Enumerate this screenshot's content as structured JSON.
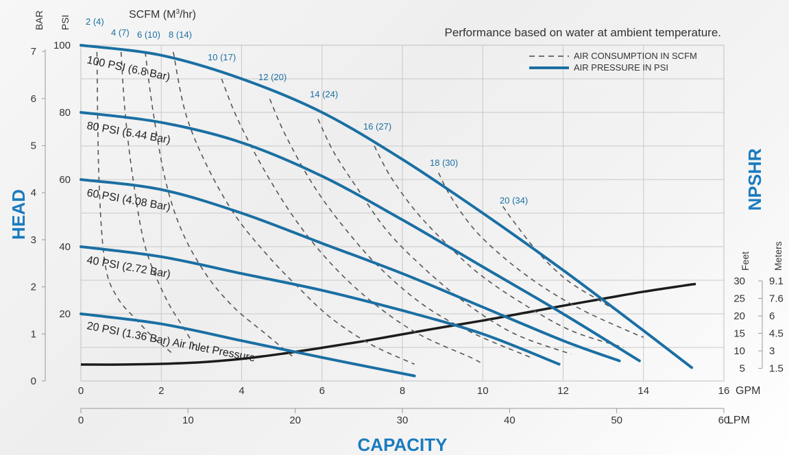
{
  "chart_data": {
    "type": "line",
    "note": "Performance based on water at ambient temperature.",
    "xlabel": "CAPACITY",
    "ylabel": "HEAD",
    "right_label": "NPSHR",
    "x_units": {
      "gpm": "GPM",
      "lpm": "LPM"
    },
    "y_units": {
      "bar": "BAR",
      "psi": "PSI"
    },
    "scfm_header": {
      "prefix": "SCFM (M",
      "sup": "3",
      "suffix": "/hr)"
    },
    "npshr_units": {
      "feet": "Feet",
      "meters": "Meters"
    },
    "xlim": [
      0,
      16
    ],
    "ylim": [
      0,
      100
    ],
    "x_ticks_gpm": [
      0,
      2,
      4,
      6,
      8,
      10,
      12,
      14,
      16
    ],
    "x_ticks_lpm": [
      0,
      10,
      20,
      30,
      40,
      50,
      60
    ],
    "y_ticks_psi": [
      20,
      40,
      60,
      80,
      100
    ],
    "y_ticks_bar": [
      0,
      1,
      2,
      3,
      4,
      5,
      6,
      7
    ],
    "npshr_ticks_feet": [
      30,
      25,
      20,
      15,
      10,
      5
    ],
    "npshr_ticks_meters": [
      "9.1",
      "7.6",
      "6",
      "4.5",
      "3",
      "1.5"
    ],
    "grid": true,
    "legend": [
      {
        "label": "AIR CONSUMPTION IN SCFM",
        "style": "dashed"
      },
      {
        "label": "AIR PRESSURE IN PSI",
        "style": "solid"
      }
    ],
    "pressure_series": [
      {
        "name": "100 PSI (6.8 Bar)",
        "points": [
          [
            0,
            100
          ],
          [
            2,
            97
          ],
          [
            4,
            90
          ],
          [
            6,
            80
          ],
          [
            8,
            66
          ],
          [
            10,
            50
          ],
          [
            12,
            33
          ],
          [
            14,
            15
          ],
          [
            15.2,
            4
          ]
        ]
      },
      {
        "name": "80 PSI (5.44 Bar)",
        "points": [
          [
            0,
            80
          ],
          [
            2,
            77
          ],
          [
            4,
            71
          ],
          [
            6,
            61
          ],
          [
            8,
            48
          ],
          [
            10,
            34
          ],
          [
            12,
            20
          ],
          [
            13.9,
            6
          ]
        ]
      },
      {
        "name": "60 PSI (4.08 Bar)",
        "points": [
          [
            0,
            60
          ],
          [
            2,
            57
          ],
          [
            4,
            50
          ],
          [
            6,
            41
          ],
          [
            8,
            32
          ],
          [
            10,
            22
          ],
          [
            12,
            12
          ],
          [
            13.4,
            6
          ]
        ]
      },
      {
        "name": "40 PSI (2.72 Bar)",
        "points": [
          [
            0,
            40
          ],
          [
            2,
            37
          ],
          [
            4,
            32
          ],
          [
            6,
            27
          ],
          [
            8,
            21
          ],
          [
            10,
            14
          ],
          [
            11.9,
            5
          ]
        ]
      },
      {
        "name": "20 PSI (1.36 Bar) Air Inlet Pressure",
        "points": [
          [
            0,
            20
          ],
          [
            2,
            17
          ],
          [
            4,
            12
          ],
          [
            6,
            7
          ],
          [
            8.3,
            1.5
          ]
        ]
      }
    ],
    "scfm_series": [
      {
        "name": "2 (4)",
        "points": [
          [
            0.4,
            98
          ],
          [
            0.45,
            60
          ],
          [
            0.6,
            35
          ],
          [
            0.9,
            25
          ],
          [
            1.4,
            18
          ],
          [
            1.8,
            13
          ],
          [
            2.3,
            8
          ]
        ]
      },
      {
        "name": "4 (7)",
        "points": [
          [
            1.0,
            98
          ],
          [
            1.1,
            80
          ],
          [
            1.3,
            60
          ],
          [
            1.6,
            40
          ],
          [
            2.1,
            25
          ],
          [
            2.6,
            15
          ],
          [
            2.9,
            9
          ]
        ]
      },
      {
        "name": "6 (10)",
        "points": [
          [
            1.6,
            98
          ],
          [
            1.8,
            80
          ],
          [
            2.1,
            60
          ],
          [
            2.5,
            45
          ],
          [
            3.1,
            32
          ],
          [
            3.8,
            22
          ],
          [
            4.6,
            14
          ],
          [
            5.3,
            7
          ]
        ]
      },
      {
        "name": "8 (14)",
        "points": [
          [
            2.3,
            98
          ],
          [
            2.6,
            80
          ],
          [
            3.1,
            65
          ],
          [
            3.8,
            50
          ],
          [
            4.6,
            38
          ],
          [
            5.4,
            28
          ],
          [
            6.2,
            19
          ],
          [
            7.2,
            11
          ],
          [
            8.3,
            5
          ]
        ]
      },
      {
        "name": "10 (17)",
        "points": [
          [
            3.5,
            90
          ],
          [
            3.9,
            78
          ],
          [
            4.6,
            62
          ],
          [
            5.4,
            47
          ],
          [
            6.3,
            34
          ],
          [
            7.3,
            23
          ],
          [
            8.4,
            14
          ],
          [
            9.7,
            7
          ],
          [
            10.0,
            5
          ]
        ]
      },
      {
        "name": "12 (20)",
        "points": [
          [
            4.7,
            84
          ],
          [
            5.1,
            73
          ],
          [
            5.8,
            58
          ],
          [
            6.6,
            45
          ],
          [
            7.5,
            33
          ],
          [
            8.6,
            22
          ],
          [
            9.8,
            14
          ],
          [
            11.2,
            7
          ]
        ]
      },
      {
        "name": "14 (24)",
        "points": [
          [
            5.9,
            78
          ],
          [
            6.3,
            68
          ],
          [
            6.9,
            57
          ],
          [
            7.6,
            45
          ],
          [
            8.5,
            34
          ],
          [
            9.6,
            23
          ],
          [
            10.8,
            14
          ],
          [
            12.2,
            8
          ]
        ]
      },
      {
        "name": "16 (27)",
        "points": [
          [
            7.3,
            70
          ],
          [
            7.7,
            61
          ],
          [
            8.3,
            51
          ],
          [
            9.0,
            42
          ],
          [
            9.9,
            32
          ],
          [
            11.0,
            23
          ],
          [
            12.2,
            15
          ],
          [
            13.5,
            10
          ]
        ]
      },
      {
        "name": "18 (30)",
        "points": [
          [
            8.9,
            62
          ],
          [
            9.2,
            55
          ],
          [
            9.8,
            45
          ],
          [
            10.6,
            36
          ],
          [
            11.5,
            28
          ],
          [
            12.5,
            21
          ],
          [
            13.6,
            15
          ],
          [
            14.0,
            13
          ]
        ]
      },
      {
        "name": "20 (34)",
        "points": [
          [
            10.5,
            52
          ],
          [
            10.8,
            47
          ],
          [
            11.4,
            38
          ],
          [
            12.1,
            30
          ],
          [
            12.9,
            24
          ],
          [
            13.6,
            19
          ]
        ]
      }
    ],
    "npshr_series": {
      "points": [
        [
          0,
          4.9
        ],
        [
          1,
          4.9
        ],
        [
          2,
          5.1
        ],
        [
          3,
          5.6
        ],
        [
          4,
          6.6
        ],
        [
          5,
          8.1
        ],
        [
          6,
          9.9
        ],
        [
          7,
          11.8
        ],
        [
          8,
          13.9
        ],
        [
          9,
          16.0
        ],
        [
          10,
          18.0
        ],
        [
          11,
          20.2
        ],
        [
          12,
          22.4
        ],
        [
          13,
          24.5
        ],
        [
          14,
          26.6
        ],
        [
          15,
          28.4
        ],
        [
          15.3,
          28.9
        ]
      ]
    },
    "colors": {
      "pressure": "#1a6fa3",
      "npshr": "#1c1c1c",
      "scfm": "#555555",
      "accent": "#1a7bbf"
    }
  }
}
